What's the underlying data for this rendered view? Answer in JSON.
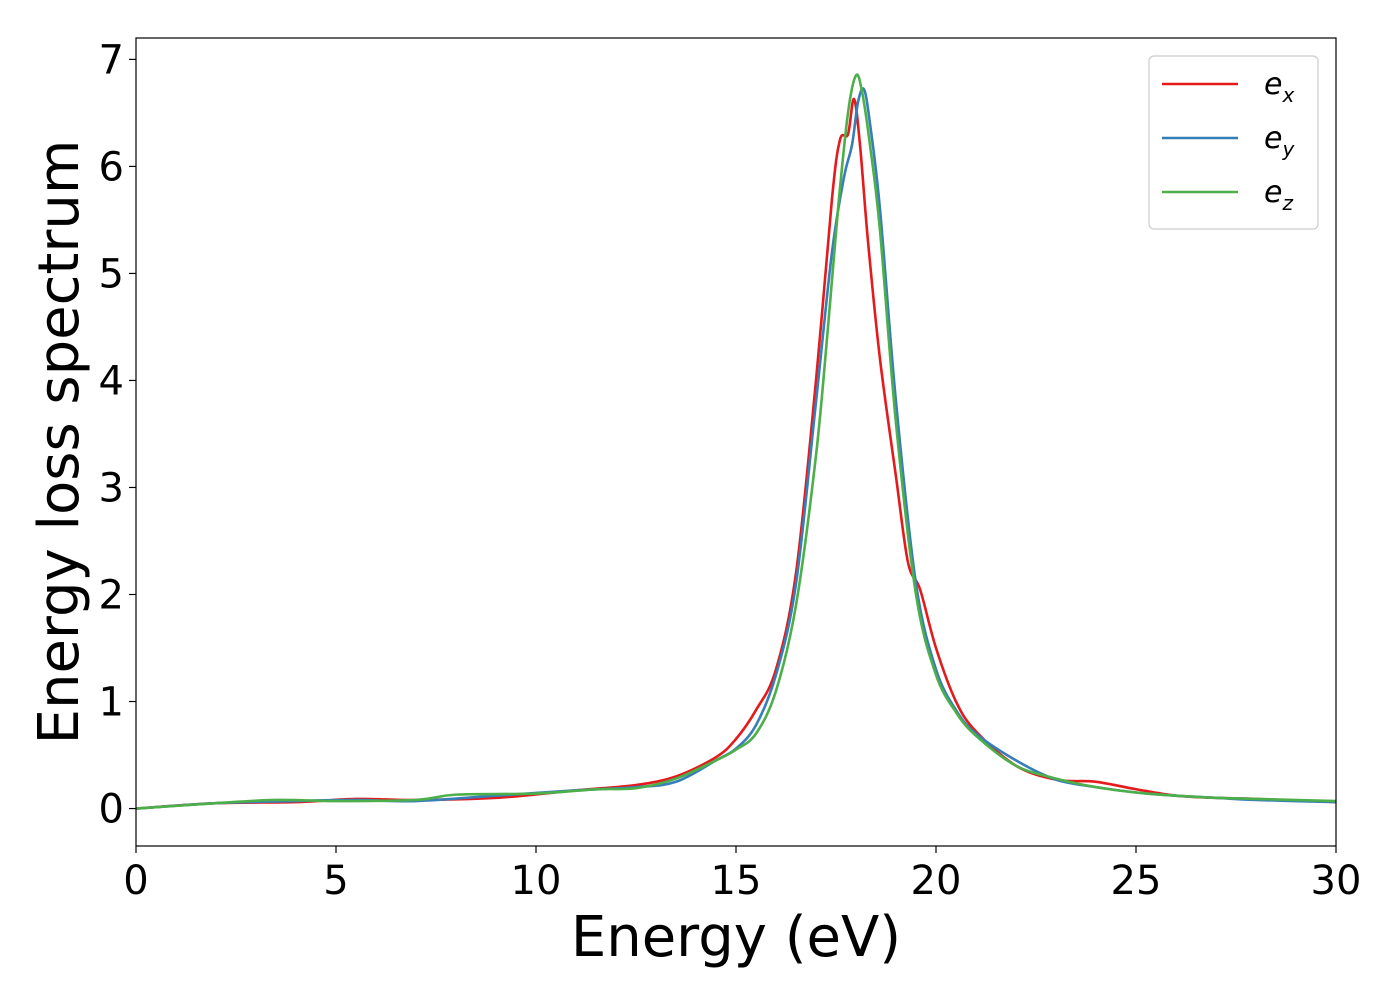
{
  "chart_data": {
    "type": "line",
    "xlabel": "Energy (eV)",
    "ylabel": "Energy loss spectrum",
    "xlim": [
      0,
      30
    ],
    "ylim": [
      -0.35,
      7.2
    ],
    "xticks": [
      "0",
      "5",
      "10",
      "15",
      "20",
      "25",
      "30"
    ],
    "yticks": [
      "0",
      "1",
      "2",
      "3",
      "4",
      "5",
      "6",
      "7"
    ],
    "grid": false,
    "legend_position": "top-right",
    "series": [
      {
        "name": "e_x",
        "label_base": "e",
        "label_sub": "x",
        "color": "#e41a1c",
        "x": [
          0,
          2,
          4,
          5.5,
          7,
          9,
          11,
          12.5,
          13.5,
          14.5,
          15,
          15.5,
          16,
          16.5,
          17,
          17.4,
          17.6,
          17.8,
          17.95,
          18.1,
          18.3,
          18.6,
          19,
          19.3,
          19.6,
          20,
          20.5,
          21,
          22,
          23,
          24,
          25,
          26,
          27,
          28,
          30
        ],
        "y": [
          0,
          0.05,
          0.06,
          0.09,
          0.08,
          0.1,
          0.17,
          0.22,
          0.3,
          0.48,
          0.65,
          0.92,
          1.3,
          2.2,
          4.0,
          5.7,
          6.25,
          6.3,
          6.63,
          6.2,
          5.3,
          4.2,
          3.1,
          2.3,
          2.05,
          1.5,
          1.0,
          0.72,
          0.4,
          0.27,
          0.25,
          0.18,
          0.12,
          0.1,
          0.09,
          0.06
        ]
      },
      {
        "name": "e_y",
        "label_base": "e",
        "label_sub": "y",
        "color": "#377eb8",
        "x": [
          0,
          2,
          4,
          5.5,
          7,
          9,
          11,
          12.5,
          13.5,
          14.5,
          15,
          15.5,
          16,
          16.5,
          17,
          17.4,
          17.7,
          17.9,
          18.05,
          18.2,
          18.35,
          18.6,
          19,
          19.5,
          20,
          20.5,
          21,
          22,
          23,
          24,
          25,
          26,
          27,
          28,
          30
        ],
        "y": [
          0,
          0.05,
          0.07,
          0.08,
          0.07,
          0.12,
          0.17,
          0.2,
          0.25,
          0.45,
          0.56,
          0.78,
          1.25,
          2.1,
          3.8,
          5.2,
          5.9,
          6.2,
          6.6,
          6.72,
          6.4,
          5.6,
          3.8,
          2.1,
          1.3,
          0.92,
          0.7,
          0.45,
          0.27,
          0.2,
          0.15,
          0.12,
          0.1,
          0.08,
          0.06
        ]
      },
      {
        "name": "e_z",
        "label_base": "e",
        "label_sub": "z",
        "color": "#4daf4a",
        "x": [
          0,
          2,
          3.5,
          5,
          7,
          8,
          10,
          11.5,
          12.5,
          13.5,
          14.5,
          15,
          15.5,
          16,
          16.5,
          17,
          17.3,
          17.55,
          17.8,
          18.0,
          18.15,
          18.35,
          18.6,
          19,
          19.5,
          20,
          20.5,
          21,
          22,
          23,
          24,
          25,
          26,
          27,
          28,
          30
        ],
        "y": [
          0,
          0.05,
          0.08,
          0.07,
          0.08,
          0.13,
          0.14,
          0.18,
          0.19,
          0.28,
          0.45,
          0.55,
          0.7,
          1.1,
          1.9,
          3.3,
          4.5,
          5.6,
          6.5,
          6.85,
          6.7,
          6.2,
          5.4,
          3.6,
          2.0,
          1.25,
          0.9,
          0.68,
          0.4,
          0.28,
          0.2,
          0.15,
          0.12,
          0.1,
          0.09,
          0.07
        ]
      }
    ]
  }
}
